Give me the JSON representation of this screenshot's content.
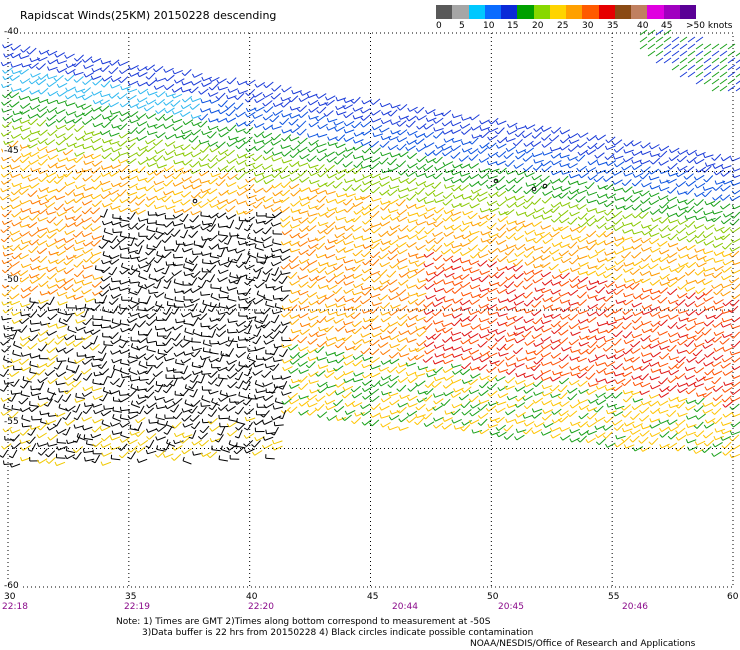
{
  "title": "Rapidscat Winds(25KM) 20150228 descending",
  "legend": {
    "colors": [
      "#595959",
      "#a6a6a6",
      "#00c8ff",
      "#0a6cff",
      "#0a2ad8",
      "#00a000",
      "#88d800",
      "#ffd400",
      "#ffa000",
      "#ff5a00",
      "#e60000",
      "#8a4a14",
      "#c08060",
      "#e000e0",
      "#a000c0",
      "#5a0096"
    ],
    "labels": [
      "0",
      "5",
      "10",
      "15",
      "20",
      "25",
      "30",
      "35",
      "40",
      "45",
      ">50 knots"
    ]
  },
  "lat_labels": [
    "-40",
    "-45",
    "-50",
    "-55",
    "-60"
  ],
  "lon_labels": [
    "30",
    "35",
    "40",
    "45",
    "50",
    "55",
    "60"
  ],
  "time_labels": [
    "22:18",
    "22:19",
    "22:20",
    "20:44",
    "20:45",
    "20:46"
  ],
  "notes": {
    "line1": "Note: 1) Times are GMT 2)Times along bottom correspond to measurement at -50S",
    "line2": "3)Data buffer is 22 hrs from 20150228 4) Black circles indicate possible contamination",
    "credit": "NOAA/NESDIS/Office of Research and Applications"
  },
  "map": {
    "lat_range": [
      -60,
      -40
    ],
    "lon_range": [
      30,
      60
    ],
    "grid_style": "dotted",
    "gridline_lats": [
      -45,
      -50,
      -55
    ],
    "gridline_lons": [
      35,
      40,
      45,
      50,
      55
    ]
  }
}
